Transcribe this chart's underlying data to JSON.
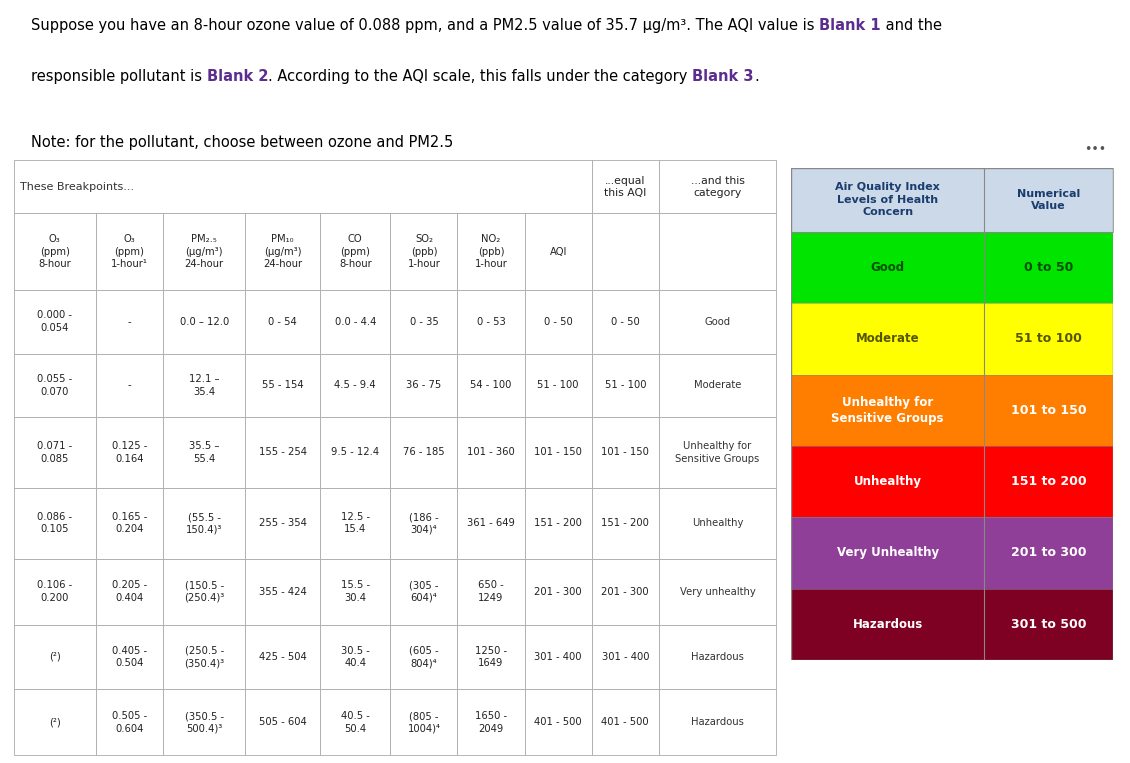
{
  "bg_color": "#ffffff",
  "grid_color": "#aaaaaa",
  "title_line1_normal1": "Suppose you have an 8-hour ozone value of 0.088 ppm, and a PM2.5 value of 35.7 μg/m³. The AQI value is ",
  "title_line1_bold1": "Blank 1",
  "title_line1_normal2": " and the",
  "title_line2_normal1": "responsible pollutant is ",
  "title_line2_bold1": "Blank 2",
  "title_line2_normal2": ". According to the AQI scale, this falls under the category ",
  "title_line2_bold2": "Blank 3",
  "title_line2_normal3": ".",
  "note_text": "Note: for the pollutant, choose between ozone and PM2.5",
  "blank_color": "#5b2d8e",
  "col_headers": [
    "O₃\n(ppm)\n8-hour",
    "O₃\n(ppm)\n1-hour¹",
    "PM₂.₅\n(μg/m³)\n24-hour",
    "PM₁₀\n(μg/m³)\n24-hour",
    "CO\n(ppm)\n8-hour",
    "SO₂\n(ppb)\n1-hour",
    "NO₂\n(ppb)\n1-hour",
    "AQI"
  ],
  "row_data": [
    [
      "0.000 -\n0.054",
      "-",
      "0.0 – 12.0",
      "0 - 54",
      "0.0 - 4.4",
      "0 - 35",
      "0 - 53",
      "0 - 50",
      "Good"
    ],
    [
      "0.055 -\n0.070",
      "-",
      "12.1 –\n35.4",
      "55 - 154",
      "4.5 - 9.4",
      "36 - 75",
      "54 - 100",
      "51 - 100",
      "Moderate"
    ],
    [
      "0.071 -\n0.085",
      "0.125 -\n0.164",
      "35.5 –\n55.4",
      "155 - 254",
      "9.5 - 12.4",
      "76 - 185",
      "101 - 360",
      "101 - 150",
      "Unhealthy for\nSensitive Groups"
    ],
    [
      "0.086 -\n0.105",
      "0.165 -\n0.204",
      "(55.5 -\n150.4)³",
      "255 - 354",
      "12.5 -\n15.4",
      "(186 -\n304)⁴",
      "361 - 649",
      "151 - 200",
      "Unhealthy"
    ],
    [
      "0.106 -\n0.200",
      "0.205 -\n0.404",
      "(150.5 -\n(250.4)³",
      "355 - 424",
      "15.5 -\n30.4",
      "(305 -\n604)⁴",
      "650 -\n1249",
      "201 - 300",
      "Very unhealthy"
    ],
    [
      "(²)",
      "0.405 -\n0.504",
      "(250.5 -\n(350.4)³",
      "425 - 504",
      "30.5 -\n40.4",
      "(605 -\n804)⁴",
      "1250 -\n1649",
      "301 - 400",
      "Hazardous"
    ],
    [
      "(²)",
      "0.505 -\n0.604",
      "(350.5 -\n500.4)³",
      "505 - 604",
      "40.5 -\n50.4",
      "(805 -\n1004)⁴",
      "1650 -\n2049",
      "401 - 500",
      "Hazardous"
    ]
  ],
  "aqi_header_bg": "#ccd9e8",
  "aqi_header_text_color": "#1a3c6e",
  "aqi_rows": [
    {
      "label": "Good",
      "value": "0 to 50",
      "bg": "#00e400",
      "fg": "#005000"
    },
    {
      "label": "Moderate",
      "value": "51 to 100",
      "bg": "#ffff00",
      "fg": "#555500"
    },
    {
      "label": "Unhealthy for\nSensitive Groups",
      "value": "101 to 150",
      "bg": "#ff7e00",
      "fg": "#ffffff"
    },
    {
      "label": "Unhealthy",
      "value": "151 to 200",
      "bg": "#ff0000",
      "fg": "#ffffff"
    },
    {
      "label": "Very Unhealthy",
      "value": "201 to 300",
      "bg": "#8f3f97",
      "fg": "#ffffff"
    },
    {
      "label": "Hazardous",
      "value": "301 to 500",
      "bg": "#7e0023",
      "fg": "#ffffff"
    }
  ],
  "dots": "•••"
}
